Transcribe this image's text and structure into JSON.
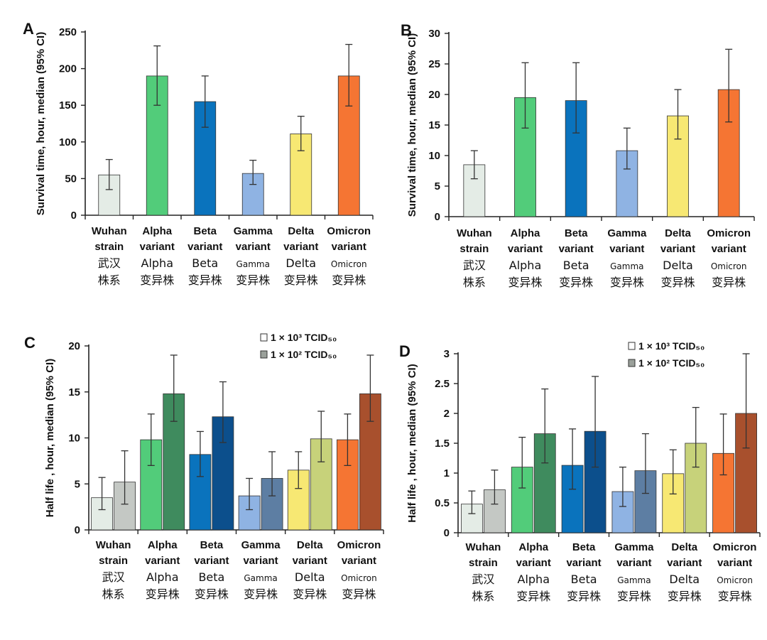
{
  "legend": {
    "label_1e3": "1 × 10³ TCID₅₀",
    "label_1e2": "1 × 10² TCID₅₀"
  },
  "categories": [
    {
      "en1": "Wuhan",
      "en2": "strain",
      "cn1": "武汉",
      "cn2": "株系",
      "cn1_small": false
    },
    {
      "en1": "Alpha",
      "en2": "variant",
      "cn1": "Alpha",
      "cn2": "变异株",
      "cn1_small": false
    },
    {
      "en1": "Beta",
      "en2": "variant",
      "cn1": "Beta",
      "cn2": "变异株",
      "cn1_small": false
    },
    {
      "en1": "Gamma",
      "en2": "variant",
      "cn1": "Gamma",
      "cn2": "变异株",
      "cn1_small": true
    },
    {
      "en1": "Delta",
      "en2": "variant",
      "cn1": "Delta",
      "cn2": "变异株",
      "cn1_small": false
    },
    {
      "en1": "Omicron",
      "en2": "variant",
      "cn1": "Omicron",
      "cn2": "变异株",
      "cn1_small": true
    }
  ],
  "colors": {
    "single": [
      "#e4ece6",
      "#52cc7a",
      "#0a73bd",
      "#8fb3e3",
      "#f7e873",
      "#f57533"
    ],
    "pair_light": [
      "#e4ece6",
      "#52cc7a",
      "#0a73bd",
      "#8fb3e3",
      "#f7e873",
      "#f57533"
    ],
    "pair_dark": [
      "#c4c8c4",
      "#3f8b5e",
      "#0c4f8c",
      "#5d7ea3",
      "#c7d27a",
      "#a8502d"
    ]
  },
  "chart_data": [
    {
      "panel": "A",
      "type": "bar",
      "ylabel": "Survival time, hour, median (95% CI)",
      "ylim": [
        0,
        250
      ],
      "yticks": [
        0,
        50,
        100,
        150,
        200,
        250
      ],
      "series": [
        {
          "values": [
            55,
            190,
            155,
            57,
            111,
            190
          ],
          "ci_low": [
            35,
            150,
            120,
            42,
            88,
            149
          ],
          "ci_high": [
            76,
            231,
            190,
            75,
            135,
            233
          ]
        }
      ]
    },
    {
      "panel": "B",
      "type": "bar",
      "ylabel": "Survival time, hour, median (95% CI)",
      "ylim": [
        0,
        30
      ],
      "yticks": [
        0,
        5,
        10,
        15,
        20,
        25,
        30
      ],
      "series": [
        {
          "values": [
            8.5,
            19.5,
            19,
            10.8,
            16.5,
            20.8
          ],
          "ci_low": [
            6.2,
            14.5,
            13.7,
            7.8,
            12.7,
            15.5
          ],
          "ci_high": [
            10.8,
            25.2,
            25.2,
            14.5,
            20.8,
            27.4
          ]
        }
      ]
    },
    {
      "panel": "C",
      "type": "bar",
      "ylabel": "Half life , hour, median (95% CI)",
      "ylim": [
        0,
        20
      ],
      "yticks": [
        0,
        5,
        10,
        15,
        20
      ],
      "series": [
        {
          "name": "1 × 10³ TCID₅₀",
          "values": [
            3.5,
            9.8,
            8.2,
            3.7,
            6.5,
            9.8
          ],
          "ci_low": [
            2.2,
            7.0,
            5.8,
            2.2,
            4.5,
            7.0
          ],
          "ci_high": [
            5.7,
            12.6,
            10.7,
            5.6,
            8.5,
            12.6
          ]
        },
        {
          "name": "1 × 10² TCID₅₀",
          "values": [
            5.2,
            14.8,
            12.3,
            5.6,
            9.9,
            14.8
          ],
          "ci_low": [
            2.8,
            11.8,
            9.5,
            3.7,
            7.4,
            11.8
          ],
          "ci_high": [
            8.6,
            19.0,
            16.1,
            8.5,
            12.9,
            19.0
          ]
        }
      ]
    },
    {
      "panel": "D",
      "type": "bar",
      "ylabel": "Half life , hour, median (95% CI)",
      "ylim": [
        0,
        3
      ],
      "yticks": [
        0,
        0.5,
        1,
        1.5,
        2,
        2.5,
        3
      ],
      "series": [
        {
          "name": "1 × 10³ TCID₅₀",
          "values": [
            0.48,
            1.1,
            1.13,
            0.69,
            0.99,
            1.33
          ],
          "ci_low": [
            0.32,
            0.75,
            0.73,
            0.44,
            0.65,
            0.97
          ],
          "ci_high": [
            0.7,
            1.6,
            1.74,
            1.1,
            1.39,
            1.99
          ]
        },
        {
          "name": "1 × 10² TCID₅₀",
          "values": [
            0.72,
            1.66,
            1.7,
            1.04,
            1.5,
            2.0
          ],
          "ci_low": [
            0.48,
            1.17,
            1.1,
            0.66,
            1.1,
            1.42
          ],
          "ci_high": [
            1.05,
            2.41,
            2.62,
            1.66,
            2.1,
            3.0
          ]
        }
      ]
    }
  ]
}
